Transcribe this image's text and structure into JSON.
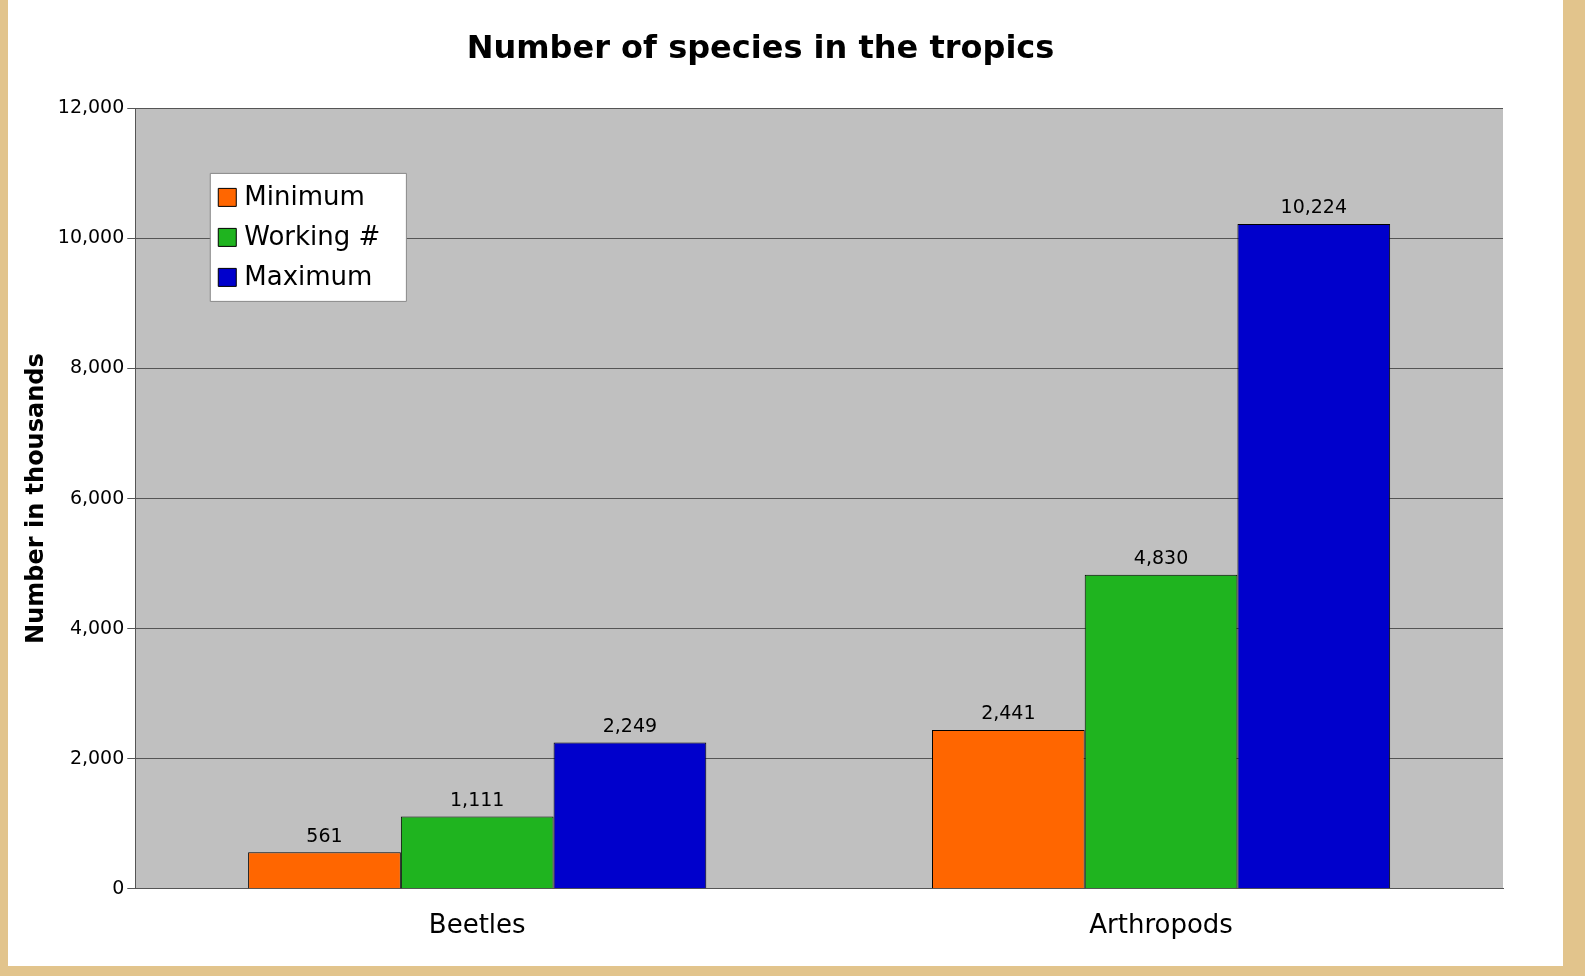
{
  "chart_data": {
    "type": "bar",
    "title": "Number of species in the tropics",
    "ylabel": "Number in thousands",
    "categories": [
      "Beetles",
      "Arthropods"
    ],
    "series": [
      {
        "name": "Minimum",
        "color": "#ff6600",
        "values": [
          561,
          2441
        ],
        "value_labels": [
          "561",
          "2,441"
        ]
      },
      {
        "name": "Working #",
        "color": "#1fb41f",
        "values": [
          1111,
          4830
        ],
        "value_labels": [
          "1,111",
          "4,830"
        ]
      },
      {
        "name": "Maximum",
        "color": "#0000cc",
        "values": [
          2249,
          10224
        ],
        "value_labels": [
          "2,249",
          "10,224"
        ]
      }
    ],
    "ylim": [
      0,
      12000
    ],
    "yticks": [
      {
        "value": 0,
        "label": "0"
      },
      {
        "value": 2000,
        "label": "2,000"
      },
      {
        "value": 4000,
        "label": "4,000"
      },
      {
        "value": 6000,
        "label": "6,000"
      },
      {
        "value": 8000,
        "label": "8,000"
      },
      {
        "value": 10000,
        "label": "10,000"
      },
      {
        "value": 12000,
        "label": "12,000"
      }
    ],
    "grid": "y",
    "legend": "top left"
  }
}
